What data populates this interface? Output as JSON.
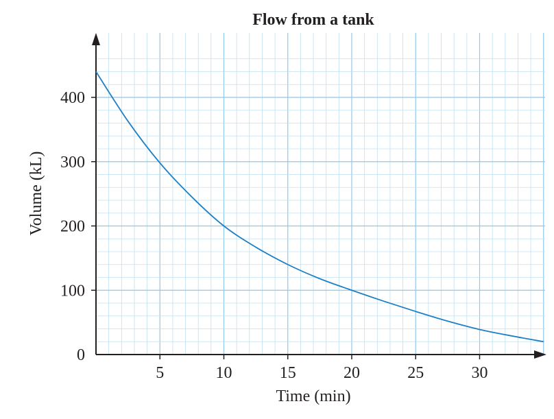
{
  "chart_data": {
    "type": "line",
    "title": "Flow from a tank",
    "xlabel": "Time (min)",
    "ylabel": "Volume (kL)",
    "xlim": [
      0,
      35
    ],
    "ylim": [
      0,
      450
    ],
    "x_ticks": [
      5,
      10,
      15,
      20,
      25,
      30
    ],
    "y_ticks": [
      0,
      100,
      200,
      300,
      400
    ],
    "x_tick_labels": [
      "5",
      "10",
      "15",
      "20",
      "25",
      "30"
    ],
    "y_tick_labels": [
      "0",
      "100",
      "200",
      "300",
      "400"
    ],
    "grid": true,
    "series": [
      {
        "color": "#1f7fc4",
        "x": [
          0,
          2.5,
          5,
          7.5,
          10,
          12.5,
          15,
          17.5,
          20,
          22.5,
          25,
          27.5,
          30,
          32.5,
          35
        ],
        "y": [
          440,
          363,
          298,
          245,
          200,
          167,
          140,
          118,
          100,
          83,
          67,
          52,
          39,
          29,
          20
        ]
      }
    ],
    "colors": {
      "grid": "#bfe0f2",
      "grid_major": "#8fc8ea",
      "axis": "#231f20",
      "line": "#1f7fc4"
    }
  }
}
